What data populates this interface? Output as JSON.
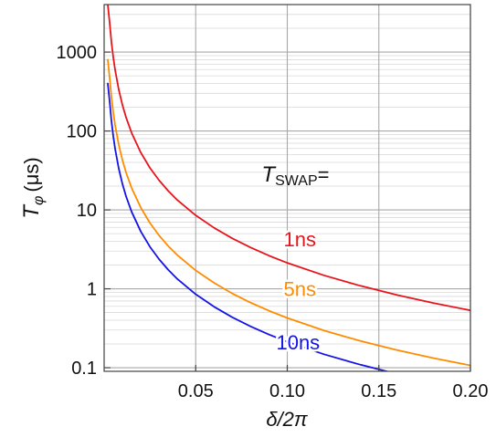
{
  "chart_data": {
    "type": "line",
    "title": "",
    "xlabel": "δ/2π",
    "ylabel": "T",
    "ylabel_sub": "φ",
    "ylabel_unit": "(μs)",
    "x_scale": "linear",
    "y_scale": "log",
    "xlim": [
      0,
      0.2
    ],
    "ylim": [
      0.09,
      4000
    ],
    "grid": true,
    "x_ticks": [
      {
        "value": 0.05,
        "label": "0.05"
      },
      {
        "value": 0.1,
        "label": "0.10"
      },
      {
        "value": 0.15,
        "label": "0.15"
      },
      {
        "value": 0.2,
        "label": "0.20"
      }
    ],
    "y_ticks": [
      {
        "value": 0.1,
        "label": "0.1"
      },
      {
        "value": 1,
        "label": "1"
      },
      {
        "value": 10,
        "label": "10"
      },
      {
        "value": 100,
        "label": "100"
      },
      {
        "value": 1000,
        "label": "1000"
      }
    ],
    "legend_title": {
      "main": "T",
      "sub": "SWAP",
      "suffix": "="
    },
    "series": [
      {
        "name": "1ns",
        "color": "#e8141c",
        "x": [
          0.002,
          0.003,
          0.004,
          0.005,
          0.006,
          0.008,
          0.01,
          0.012,
          0.015,
          0.02,
          0.025,
          0.03,
          0.035,
          0.04,
          0.05,
          0.06,
          0.07,
          0.08,
          0.09,
          0.1,
          0.12,
          0.14,
          0.16,
          0.18,
          0.2
        ],
        "y": [
          4000,
          2370,
          1330,
          853,
          593,
          333,
          213,
          148,
          94.8,
          53.3,
          34.1,
          23.7,
          17.4,
          13.3,
          8.53,
          5.93,
          4.35,
          3.33,
          2.63,
          2.13,
          1.48,
          1.09,
          0.833,
          0.658,
          0.533
        ]
      },
      {
        "name": "5ns",
        "color": "#ff8c00",
        "x": [
          0.002,
          0.003,
          0.004,
          0.005,
          0.006,
          0.008,
          0.01,
          0.012,
          0.015,
          0.02,
          0.025,
          0.03,
          0.035,
          0.04,
          0.05,
          0.06,
          0.07,
          0.08,
          0.09,
          0.1,
          0.12,
          0.14,
          0.16,
          0.18,
          0.2
        ],
        "y": [
          800,
          474,
          267,
          171,
          119,
          66.7,
          42.7,
          29.6,
          19.0,
          10.7,
          6.83,
          4.74,
          3.48,
          2.67,
          1.71,
          1.19,
          0.871,
          0.667,
          0.527,
          0.427,
          0.296,
          0.218,
          0.167,
          0.132,
          0.107
        ]
      },
      {
        "name": "10ns",
        "color": "#1414e6",
        "x": [
          0.002,
          0.003,
          0.004,
          0.005,
          0.006,
          0.008,
          0.01,
          0.012,
          0.015,
          0.02,
          0.025,
          0.03,
          0.035,
          0.04,
          0.05,
          0.06,
          0.07,
          0.08,
          0.09,
          0.1,
          0.12,
          0.14,
          0.16,
          0.18,
          0.2
        ],
        "y": [
          400,
          237,
          133,
          85.3,
          59.3,
          33.3,
          21.3,
          14.8,
          9.48,
          5.33,
          3.41,
          2.37,
          1.74,
          1.33,
          0.853,
          0.593,
          0.435,
          0.333,
          0.263,
          0.213,
          0.148,
          0.109,
          0.0833,
          0.0658,
          0.0533
        ]
      }
    ],
    "annotations": [
      {
        "text": "1ns",
        "x": 0.098,
        "y": 4.3,
        "color": "#e8141c"
      },
      {
        "text": "5ns",
        "x": 0.098,
        "y": 1.0,
        "color": "#ff8c00"
      },
      {
        "text": "10ns",
        "x": 0.094,
        "y": 0.21,
        "color": "#1414e6"
      }
    ],
    "legend_position": {
      "x": 0.086,
      "y": 23
    }
  }
}
